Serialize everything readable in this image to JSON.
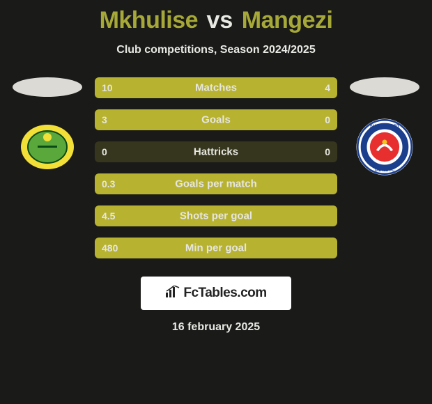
{
  "background_color": "#1a1a19",
  "title": {
    "player1": "Mkhulise",
    "player1_color": "#a6a838",
    "vs": "vs",
    "vs_color": "#e9e9e4",
    "player2": "Mangezi",
    "player2_color": "#a6a838"
  },
  "subtitle": {
    "text": "Club competitions, Season 2024/2025",
    "color": "#e9e9e4"
  },
  "left_side": {
    "oval_bg": "#dcdad4",
    "crest_bg": "#f2df37",
    "crest_inner_bg": "#5aa83c",
    "crest_border": "#0a4a16"
  },
  "right_side": {
    "oval_bg": "#dcdad4",
    "crest_bg": "#ffffff",
    "crest_ring": "#1b3f8c",
    "crest_inner": "#e72f2f",
    "crest_text": "SUPERSPORT",
    "crest_sub": "UNITED FC"
  },
  "bars": {
    "track_color": "#36361f",
    "fill_color": "#b7b230",
    "label_color": "#e6e6df",
    "value_color": "#e6e6df",
    "rows": [
      {
        "label": "Matches",
        "left_val": "10",
        "right_val": "4",
        "left_pct": 71,
        "right_pct": 29
      },
      {
        "label": "Goals",
        "left_val": "3",
        "right_val": "0",
        "left_pct": 100,
        "right_pct": 0
      },
      {
        "label": "Hattricks",
        "left_val": "0",
        "right_val": "0",
        "left_pct": 0,
        "right_pct": 0
      },
      {
        "label": "Goals per match",
        "left_val": "0.3",
        "right_val": "",
        "left_pct": 100,
        "right_pct": 0
      },
      {
        "label": "Shots per goal",
        "left_val": "4.5",
        "right_val": "",
        "left_pct": 100,
        "right_pct": 0
      },
      {
        "label": "Min per goal",
        "left_val": "480",
        "right_val": "",
        "left_pct": 100,
        "right_pct": 0
      }
    ]
  },
  "brand": {
    "bg": "#ffffff",
    "text": "FcTables.com",
    "text_color": "#222222"
  },
  "date": {
    "text": "16 february 2025",
    "color": "#e9e9e4"
  }
}
